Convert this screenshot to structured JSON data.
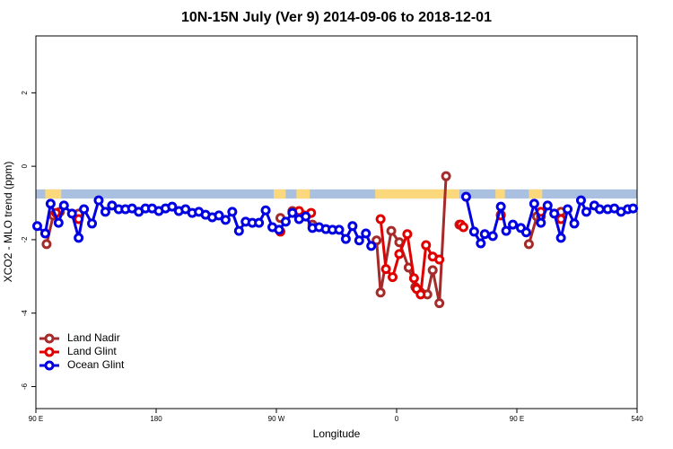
{
  "chart_data": {
    "type": "line",
    "title": "10N-15N July (Ver 9)   2014-09-06 to 2018-12-01",
    "xlabel": "Longitude",
    "ylabel": "XCO2 - MLO trend (ppm)",
    "xlim": [
      90,
      540
    ],
    "ylim": [
      -6.6,
      3.55
    ],
    "xticks": [
      {
        "value": 90,
        "label": "90 E"
      },
      180,
      {
        "value": 270,
        "label": "90 W"
      },
      {
        "value": 360,
        "label": "0"
      },
      {
        "value": 450,
        "label": "90 E"
      },
      540
    ],
    "yticks": [
      -6,
      -4,
      -2,
      0,
      2
    ],
    "legend": "bottom-left",
    "band": {
      "ylim": [
        -0.88,
        -0.63
      ],
      "ocean_color": "#a9c0e0",
      "land_color": "#fcd87c",
      "land": [
        [
          97,
          109
        ],
        [
          268,
          277
        ],
        [
          285,
          295
        ],
        [
          344,
          407
        ],
        [
          434,
          441
        ],
        [
          459,
          469
        ]
      ]
    },
    "series": [
      {
        "name": "Land Nadir",
        "color": "#a52a2a",
        "x": [
          98,
          103,
          108,
          115,
          122,
          200,
          273,
          278,
          282,
          290,
          297,
          320,
          345,
          348,
          356,
          362,
          369,
          374,
          378,
          383,
          387,
          392,
          397,
          402,
          407,
          420,
          438,
          450,
          459,
          465,
          468,
          475,
          483
        ],
        "values": [
          -2.12,
          -1.34,
          -1.24,
          null,
          -1.29,
          null,
          -1.41,
          null,
          -1.22,
          null,
          -1.59,
          null,
          -2.02,
          -3.44,
          -1.76,
          -2.07,
          -2.76,
          -3.29,
          -3.44,
          -3.49,
          -2.83,
          -3.73,
          -0.27,
          null,
          -1.59,
          null,
          -1.32,
          null,
          -2.12,
          -1.37,
          -1.37,
          null,
          -1.24
        ]
      },
      {
        "name": "Land Glint",
        "color": "#e00000",
        "x": [
          105,
          113,
          122,
          200,
          273,
          280,
          287,
          296,
          320,
          348,
          352,
          357,
          362,
          368,
          373,
          375,
          378,
          382,
          387,
          392,
          400,
          408,
          410,
          425,
          438,
          450,
          468,
          475,
          483
        ],
        "values": [
          -1.27,
          null,
          -1.44,
          null,
          -1.78,
          null,
          -1.22,
          -1.27,
          null,
          -1.44,
          -2.8,
          -3.02,
          -2.39,
          -1.85,
          -3.05,
          -3.34,
          -3.49,
          -2.15,
          -2.46,
          -2.54,
          null,
          -1.59,
          -1.66,
          null,
          -1.34,
          null,
          -1.24,
          null,
          -1.44
        ]
      },
      {
        "name": "Ocean Glint",
        "color": "#0000e0",
        "x": [
          91,
          97,
          101,
          107,
          111,
          117,
          122,
          126,
          132,
          137,
          142,
          147,
          152,
          157,
          162,
          167,
          172,
          177,
          182,
          187,
          192,
          197,
          202,
          207,
          212,
          217,
          222,
          227,
          232,
          237,
          242,
          247,
          252,
          257,
          262,
          267,
          272,
          277,
          282,
          287,
          292,
          297,
          302,
          307,
          312,
          317,
          322,
          327,
          332,
          337,
          341,
          376,
          412,
          418,
          423,
          426,
          432,
          438,
          442,
          447,
          453,
          457,
          463,
          468,
          473,
          478,
          483,
          488,
          493,
          498,
          502,
          508,
          512,
          518,
          523,
          528,
          533,
          537
        ],
        "values": [
          -1.63,
          -1.83,
          -1.02,
          -1.54,
          -1.07,
          -1.29,
          -1.95,
          -1.17,
          -1.56,
          -0.93,
          -1.24,
          -1.07,
          -1.17,
          -1.17,
          -1.15,
          -1.24,
          -1.15,
          -1.15,
          -1.22,
          -1.15,
          -1.1,
          -1.22,
          -1.17,
          -1.27,
          -1.24,
          -1.32,
          -1.39,
          -1.34,
          -1.46,
          -1.24,
          -1.76,
          -1.51,
          -1.54,
          -1.54,
          -1.2,
          -1.66,
          -1.73,
          -1.51,
          -1.27,
          -1.44,
          -1.37,
          -1.68,
          -1.66,
          -1.71,
          -1.73,
          -1.73,
          -1.98,
          -1.63,
          -2.02,
          -1.83,
          -2.17,
          null,
          -0.83,
          -1.78,
          -2.1,
          -1.85,
          -1.9,
          -1.1,
          -1.76,
          -1.59,
          -1.68,
          -1.8,
          -1.02,
          -1.54,
          -1.07,
          -1.29,
          -1.95,
          -1.17,
          -1.56,
          -0.93,
          -1.24,
          -1.07,
          -1.17,
          -1.17,
          -1.15,
          -1.24,
          -1.17,
          -1.15
        ]
      }
    ]
  }
}
